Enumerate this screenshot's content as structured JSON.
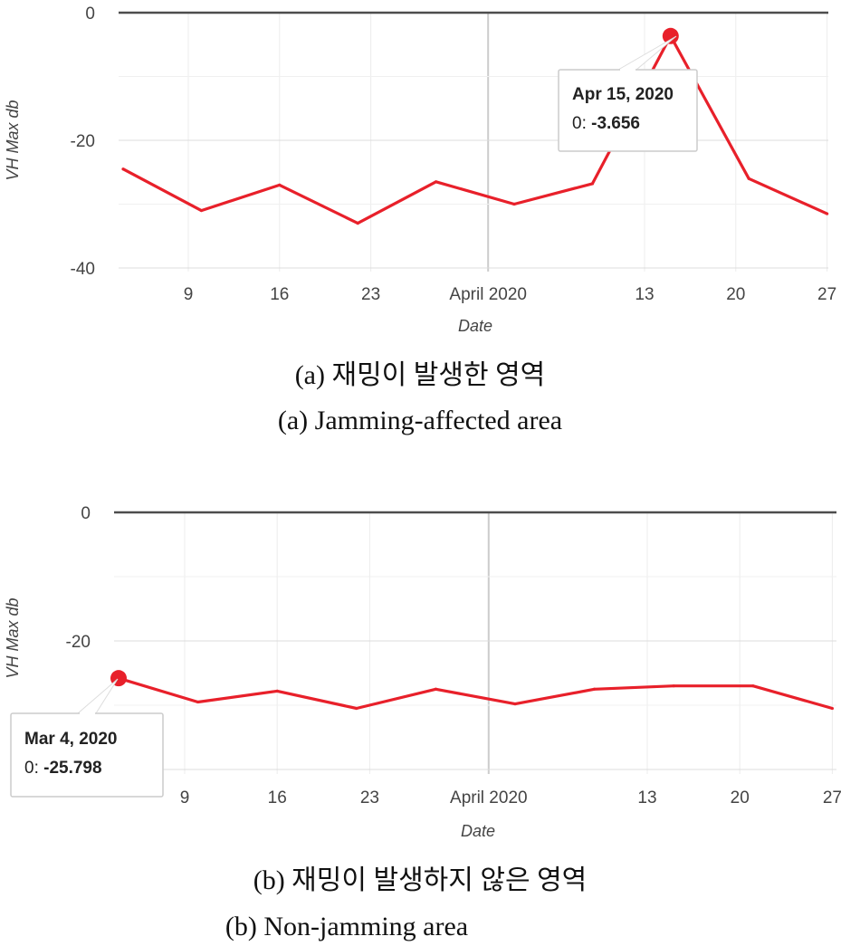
{
  "chart_data": [
    {
      "type": "line",
      "caption_ko": "(a) 재밍이 발생한 영역",
      "caption_en": "(a) Jamming-affected area",
      "ylabel": "VH Max db",
      "xlabel": "Date",
      "ylim": [
        -40,
        0
      ],
      "yticks": [
        "0",
        "-20",
        "-40"
      ],
      "xticks": [
        "9",
        "16",
        "23",
        "April 2020",
        "13",
        "20",
        "27"
      ],
      "color": "#e8202a",
      "series": [
        {
          "x": [
            "2020-03-04",
            "2020-03-10",
            "2020-03-16",
            "2020-03-22",
            "2020-03-28",
            "2020-04-03",
            "2020-04-09",
            "2020-04-15",
            "2020-04-21",
            "2020-04-27"
          ],
          "values": [
            -24.5,
            -31.0,
            -27.0,
            -33.0,
            -26.5,
            -30.0,
            -26.8,
            -3.656,
            -26.0,
            -31.5
          ]
        }
      ],
      "tooltip": {
        "date": "Apr 15, 2020",
        "label": "0: ",
        "value": "-3.656"
      }
    },
    {
      "type": "line",
      "caption_ko": "(b) 재밍이 발생하지 않은 영역",
      "caption_en": "(b) Non-jamming area",
      "ylabel": "VH Max db",
      "xlabel": "Date",
      "ylim": [
        -40,
        0
      ],
      "yticks": [
        "0",
        "-20",
        "-40"
      ],
      "xticks": [
        "9",
        "16",
        "23",
        "April 2020",
        "13",
        "20",
        "27"
      ],
      "color": "#e8202a",
      "series": [
        {
          "x": [
            "2020-03-04",
            "2020-03-10",
            "2020-03-16",
            "2020-03-22",
            "2020-03-28",
            "2020-04-03",
            "2020-04-09",
            "2020-04-15",
            "2020-04-21",
            "2020-04-27"
          ],
          "values": [
            -25.798,
            -29.5,
            -27.8,
            -30.5,
            -27.5,
            -29.8,
            -27.5,
            -27.0,
            -27.0,
            -30.5
          ]
        }
      ],
      "tooltip": {
        "date": "Mar 4, 2020",
        "label": "0: ",
        "value": "-25.798"
      }
    }
  ]
}
